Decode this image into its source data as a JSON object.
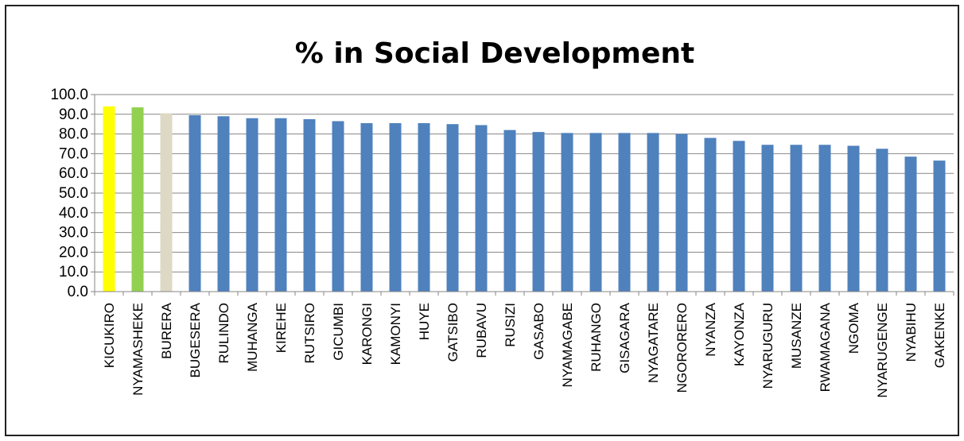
{
  "chart_data": {
    "type": "bar",
    "title": "% in Social Development",
    "categories": [
      "KICUKIRO",
      "NYAMASHEKE",
      "BURERA",
      "BUGESERA",
      "RULINDO",
      "MUHANGA",
      "KIREHE",
      "RUTSIRO",
      "GICUMBI",
      "KARONGI",
      "KAMONYI",
      "HUYE",
      "GATSIBO",
      "RUBAVU",
      "RUSIZI",
      "GASABO",
      "NYAMAGABE",
      "RUHANGO",
      "GISAGARA",
      "NYAGATARE",
      "NGORORERO",
      "NYANZA",
      "KAYONZA",
      "NYARUGURU",
      "MUSANZE",
      "RWAMAGANA",
      "NGOMA",
      "NYARUGENGE",
      "NYABIHU",
      "GAKENKE"
    ],
    "values": [
      94.0,
      93.5,
      90.5,
      89.5,
      89.0,
      88.0,
      88.0,
      87.5,
      86.5,
      85.5,
      85.5,
      85.5,
      85.0,
      84.5,
      82.0,
      81.0,
      80.5,
      80.5,
      80.5,
      80.5,
      80.0,
      78.0,
      76.5,
      74.5,
      74.5,
      74.5,
      74.0,
      72.5,
      68.5,
      66.5
    ],
    "bar_colors": [
      "#ffff00",
      "#92d050",
      "#ddd9c4",
      "#4f81bd",
      "#4f81bd",
      "#4f81bd",
      "#4f81bd",
      "#4f81bd",
      "#4f81bd",
      "#4f81bd",
      "#4f81bd",
      "#4f81bd",
      "#4f81bd",
      "#4f81bd",
      "#4f81bd",
      "#4f81bd",
      "#4f81bd",
      "#4f81bd",
      "#4f81bd",
      "#4f81bd",
      "#4f81bd",
      "#4f81bd",
      "#4f81bd",
      "#4f81bd",
      "#4f81bd",
      "#4f81bd",
      "#4f81bd",
      "#4f81bd",
      "#4f81bd",
      "#4f81bd"
    ],
    "ylim": [
      0,
      100
    ],
    "yticks": [
      "0.0",
      "10.0",
      "20.0",
      "30.0",
      "40.0",
      "50.0",
      "60.0",
      "70.0",
      "80.0",
      "90.0",
      "100.0"
    ],
    "xlabel": "",
    "ylabel": "",
    "grid": true,
    "legend": "none"
  }
}
